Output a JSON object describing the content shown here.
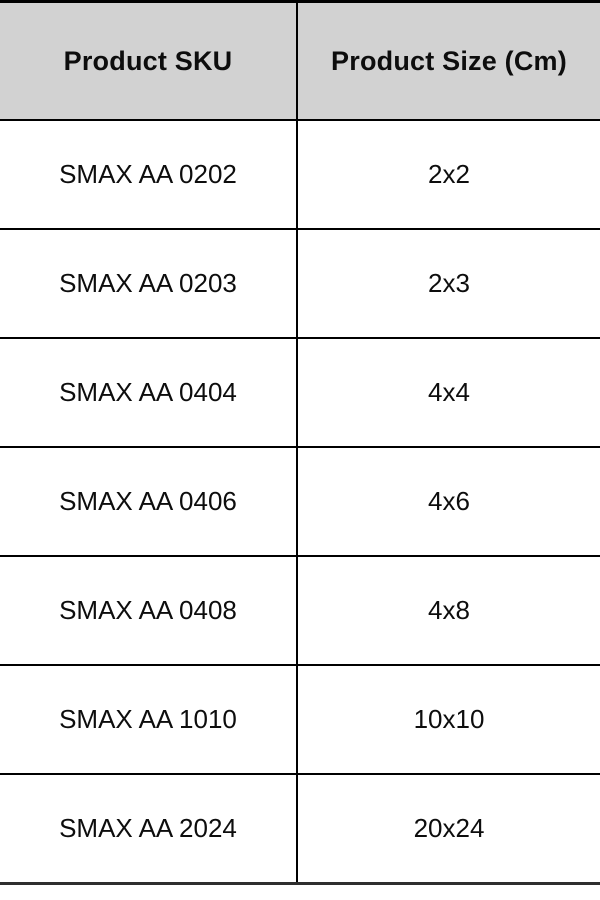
{
  "table": {
    "columns": [
      {
        "label": "Product SKU"
      },
      {
        "label": "Product Size (Cm)"
      }
    ],
    "rows": [
      {
        "sku": "SMAX AA 0202",
        "size": "2x2"
      },
      {
        "sku": "SMAX AA 0203",
        "size": "2x3"
      },
      {
        "sku": "SMAX AA 0404",
        "size": "4x4"
      },
      {
        "sku": "SMAX AA 0406",
        "size": "4x6"
      },
      {
        "sku": "SMAX AA 0408",
        "size": "4x8"
      },
      {
        "sku": "SMAX AA 1010",
        "size": "10x10"
      },
      {
        "sku": "SMAX AA 2024",
        "size": "20x24"
      }
    ]
  },
  "colors": {
    "header_bg": "#d2d2d2",
    "border": "#000000",
    "text": "#0d0d0d",
    "row_bg": "#ffffff"
  },
  "chart_data": {
    "type": "table",
    "title": "",
    "columns": [
      "Product SKU",
      "Product Size (Cm)"
    ],
    "rows": [
      [
        "SMAX AA 0202",
        "2x2"
      ],
      [
        "SMAX AA 0203",
        "2x3"
      ],
      [
        "SMAX AA 0404",
        "4x4"
      ],
      [
        "SMAX AA 0406",
        "4x6"
      ],
      [
        "SMAX AA 0408",
        "4x8"
      ],
      [
        "SMAX AA 1010",
        "10x10"
      ],
      [
        "SMAX AA 2024",
        "20x24"
      ]
    ]
  }
}
